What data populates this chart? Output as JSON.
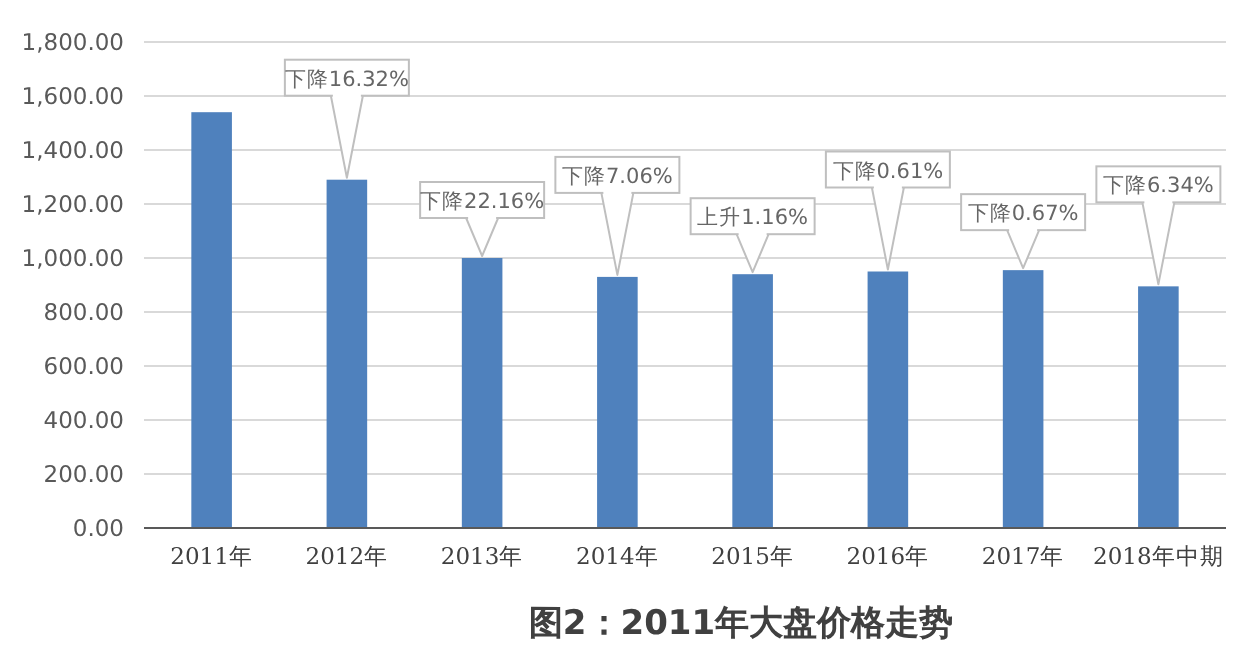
{
  "chart_data": {
    "type": "bar",
    "title": "图2：2011年大盘价格走势",
    "categories": [
      "2011年",
      "2012年",
      "2013年",
      "2014年",
      "2015年",
      "2016年",
      "2017年",
      "2018年中期"
    ],
    "values": [
      1540,
      1290,
      1000,
      930,
      940,
      950,
      955,
      895
    ],
    "color": "#4f81bd",
    "ylim": [
      0,
      1800
    ],
    "yticks": [
      {
        "value": 0,
        "label": "0.00"
      },
      {
        "value": 200,
        "label": "200.00"
      },
      {
        "value": 400,
        "label": "400.00"
      },
      {
        "value": 600,
        "label": "600.00"
      },
      {
        "value": 800,
        "label": "800.00"
      },
      {
        "value": 1000,
        "label": "1,000.00"
      },
      {
        "value": 1200,
        "label": "1,200.00"
      },
      {
        "value": 1400,
        "label": "1,400.00"
      },
      {
        "value": 1600,
        "label": "1,600.00"
      },
      {
        "value": 1800,
        "label": "1,800.00"
      }
    ],
    "grid": "y",
    "annotations": [
      {
        "text": "下降16.32%",
        "x": "2012年",
        "y": 1290
      },
      {
        "text": "下降22.16%",
        "x": "2013年",
        "y": 1000
      },
      {
        "text": "下降7.06%",
        "x": "2014年",
        "y": 930
      },
      {
        "text": "上升1.16%",
        "x": "2015年",
        "y": 940
      },
      {
        "text": "下降0.61%",
        "x": "2016年",
        "y": 950
      },
      {
        "text": "下降0.67%",
        "x": "2017年",
        "y": 955
      },
      {
        "text": "下降6.34%",
        "x": "2018年中期",
        "y": 895
      }
    ]
  }
}
